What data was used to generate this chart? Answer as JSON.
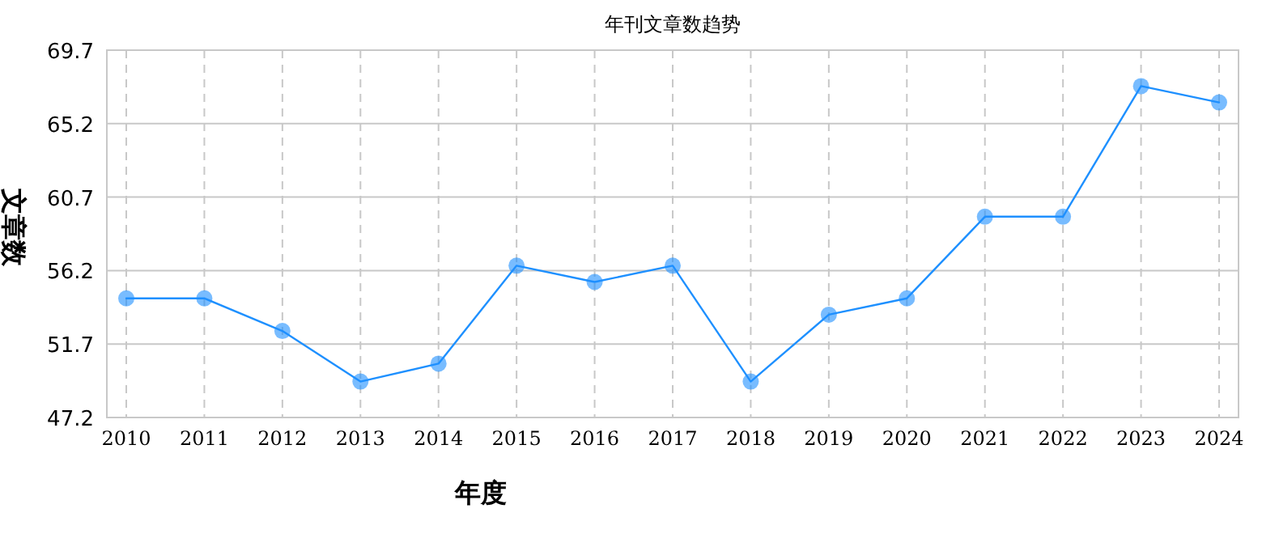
{
  "chart_data": {
    "type": "line",
    "title": "年刊文章数趋势",
    "xlabel": "年度",
    "ylabel": "文章数",
    "categories": [
      "2010",
      "2011",
      "2012",
      "2013",
      "2014",
      "2015",
      "2016",
      "2017",
      "2018",
      "2019",
      "2020",
      "2021",
      "2022",
      "2023",
      "2024"
    ],
    "values": [
      54.5,
      54.5,
      52.5,
      49.4,
      50.5,
      56.5,
      55.5,
      56.5,
      49.4,
      53.5,
      54.5,
      59.5,
      59.5,
      67.5,
      66.5
    ],
    "color": "#1e90ff",
    "ylim": [
      47.2,
      69.7
    ],
    "yticks": [
      47.2,
      51.7,
      56.2,
      60.7,
      65.2,
      69.7
    ],
    "grid": true,
    "marker": "circle",
    "line_style": "solid"
  }
}
